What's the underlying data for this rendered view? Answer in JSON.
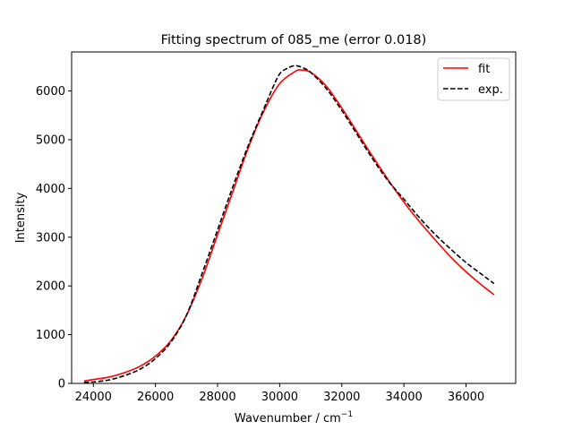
{
  "chart_data": {
    "type": "line",
    "title": "Fitting spectrum of 085_me (error 0.018)",
    "xlabel": "Wavenumber / cm",
    "xlabel_superscript": "−1",
    "ylabel": "Intensity",
    "xlim": [
      23300,
      37600
    ],
    "ylim": [
      0,
      6800
    ],
    "xticks": [
      24000,
      26000,
      28000,
      30000,
      32000,
      34000,
      36000
    ],
    "yticks": [
      0,
      1000,
      2000,
      3000,
      4000,
      5000,
      6000
    ],
    "grid": false,
    "legend_position": "top-right",
    "series": [
      {
        "name": "fit",
        "color": "#ff0000",
        "style": "solid",
        "x": [
          23700,
          24000,
          24500,
          25000,
          25500,
          26000,
          26500,
          27000,
          27500,
          28000,
          28500,
          29000,
          29500,
          30000,
          30500,
          30700,
          31000,
          31500,
          32000,
          32500,
          33000,
          33500,
          34000,
          34500,
          35000,
          35500,
          36000,
          36500,
          36900
        ],
        "values": [
          50,
          80,
          130,
          220,
          350,
          560,
          880,
          1400,
          2150,
          3050,
          3950,
          4850,
          5600,
          6150,
          6400,
          6430,
          6380,
          6100,
          5650,
          5150,
          4650,
          4170,
          3720,
          3320,
          2950,
          2600,
          2290,
          2020,
          1820
        ]
      },
      {
        "name": "exp.",
        "color": "#000000",
        "style": "dashed",
        "x": [
          23700,
          24000,
          24500,
          25000,
          25500,
          26000,
          26500,
          27000,
          27500,
          28000,
          28500,
          29000,
          29500,
          29800,
          30000,
          30200,
          30500,
          30800,
          31000,
          31500,
          32000,
          32500,
          33000,
          33500,
          34000,
          34500,
          35000,
          35500,
          36000,
          36500,
          36900
        ],
        "values": [
          20,
          30,
          70,
          160,
          290,
          510,
          850,
          1400,
          2250,
          3150,
          4050,
          4900,
          5650,
          6100,
          6350,
          6450,
          6520,
          6460,
          6380,
          6050,
          5600,
          5100,
          4600,
          4150,
          3780,
          3400,
          3060,
          2760,
          2480,
          2240,
          2050
        ]
      }
    ]
  }
}
